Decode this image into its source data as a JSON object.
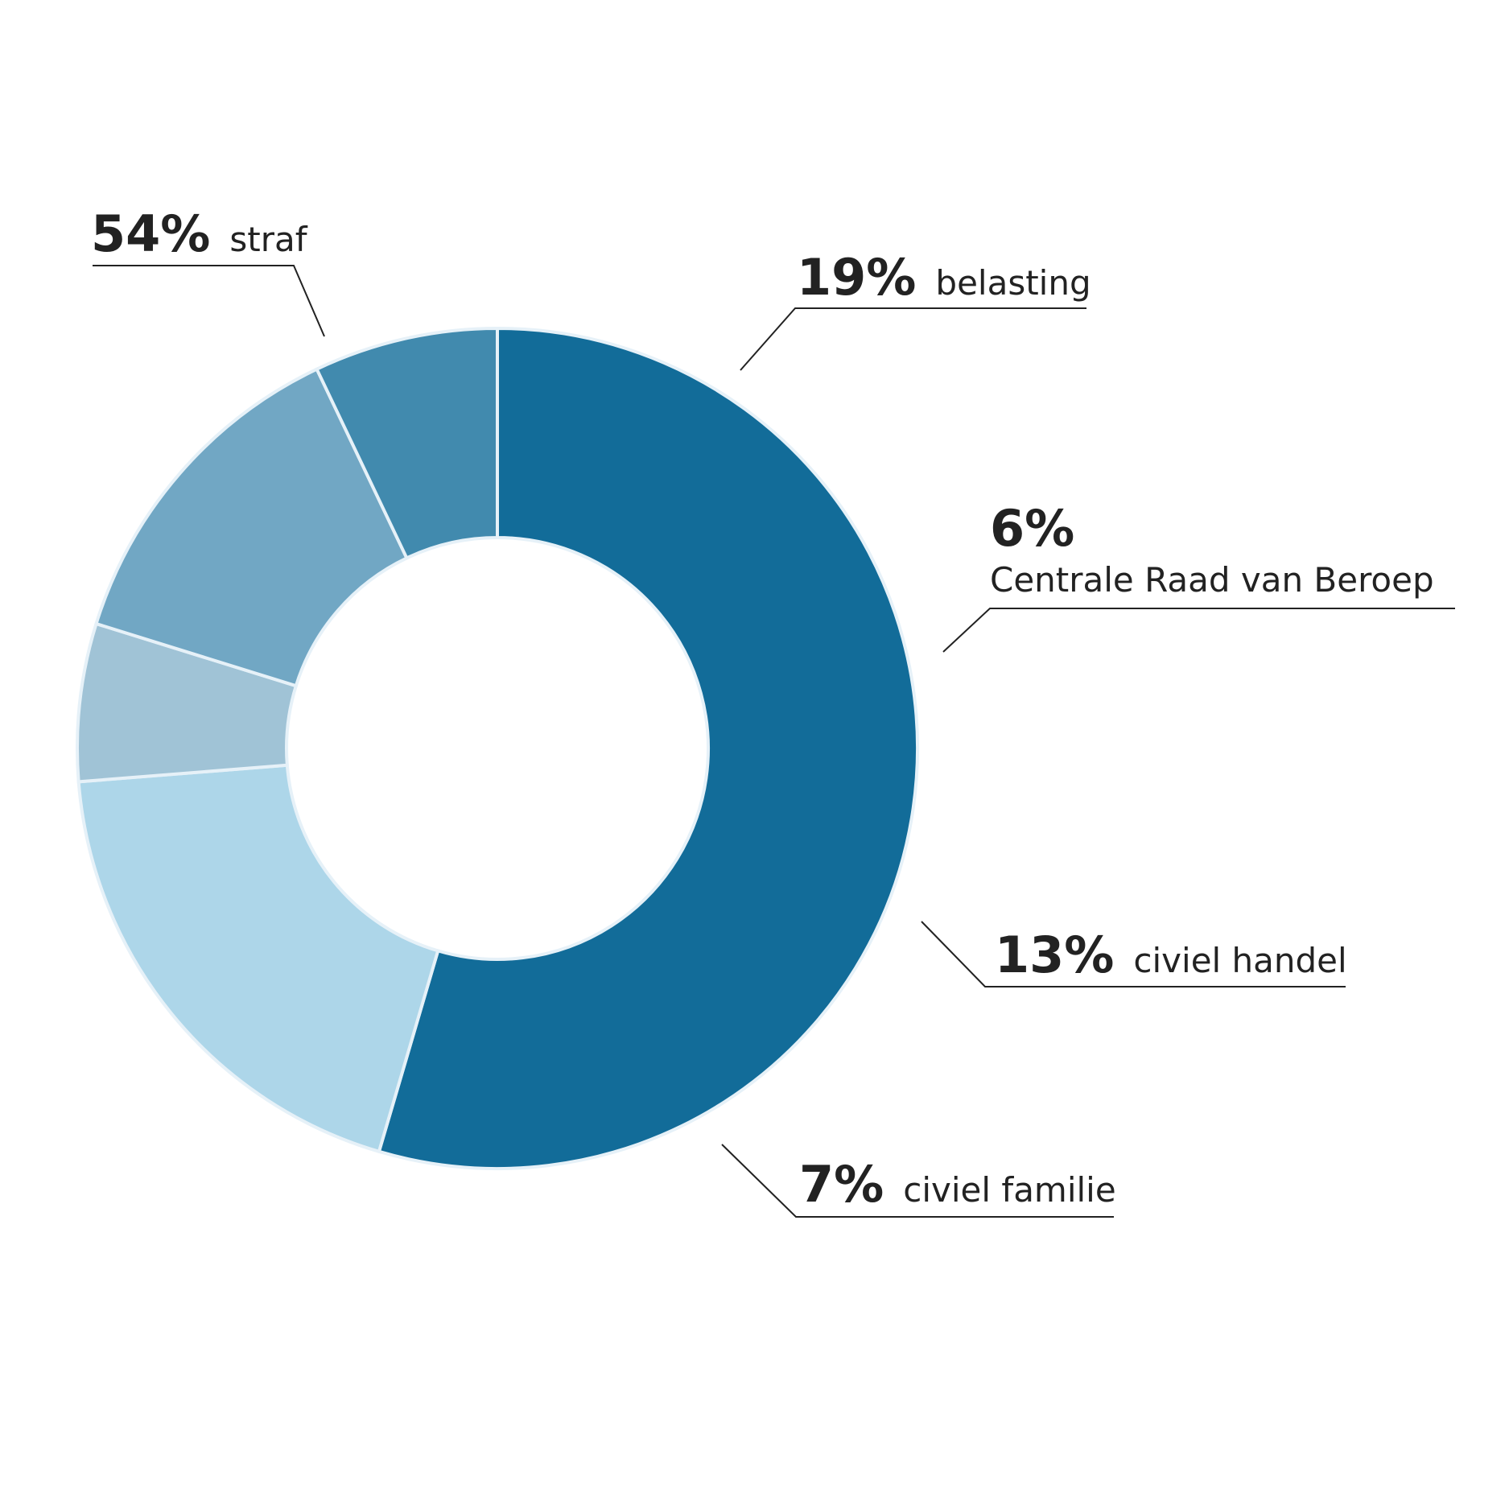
{
  "chart_data": {
    "type": "pie",
    "subtype": "donut",
    "title": "",
    "unit": "%",
    "slices": [
      {
        "label": "straf",
        "value": 54,
        "value_label": "54%",
        "color": "#126c99"
      },
      {
        "label": "belasting",
        "value": 19,
        "value_label": "19%",
        "color": "#add6e9"
      },
      {
        "label": "Centrale Raad van Beroep",
        "value": 6,
        "value_label": "6%",
        "color": "#a0c3d6"
      },
      {
        "label": "civiel handel",
        "value": 13,
        "value_label": "13%",
        "color": "#71a7c4"
      },
      {
        "label": "civiel familie",
        "value": 7,
        "value_label": "7%",
        "color": "#418aae"
      }
    ],
    "legend": "none",
    "labels_position": "outside-with-leader-lines"
  }
}
